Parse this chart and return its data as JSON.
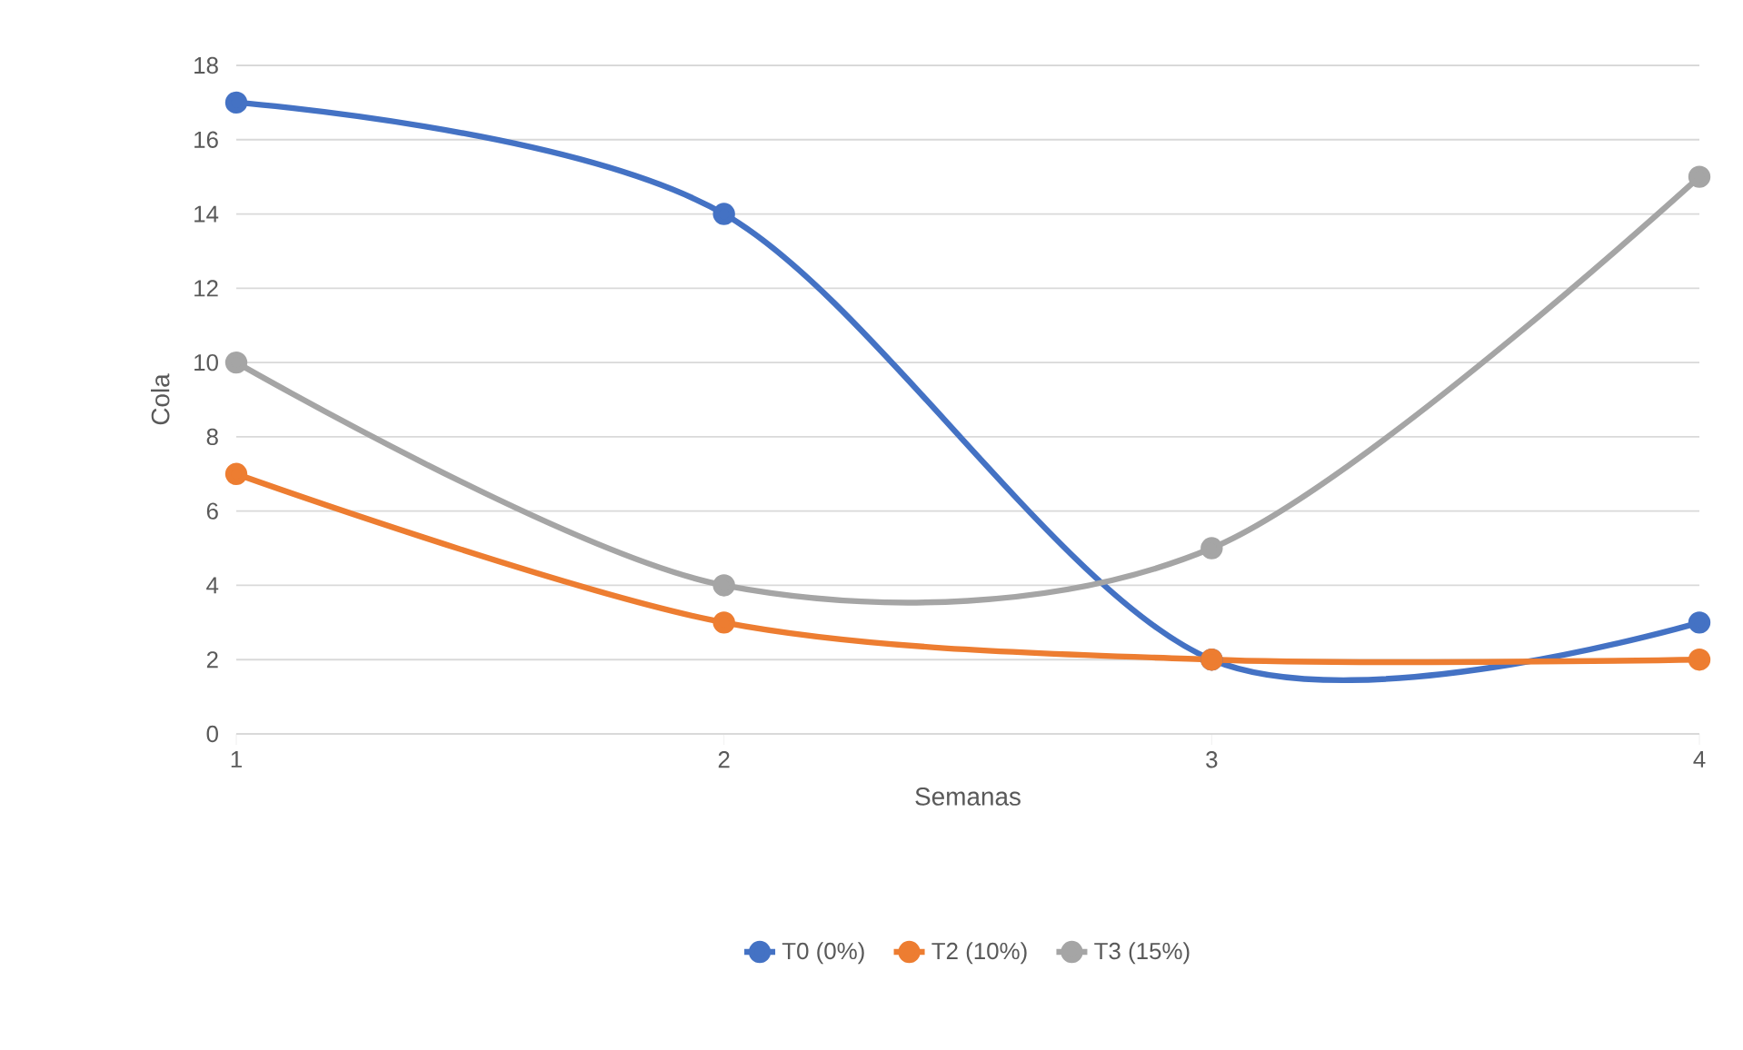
{
  "chart_data": {
    "type": "line",
    "xlabel": "Semanas",
    "ylabel": "Cola",
    "x": [
      1,
      2,
      3,
      4
    ],
    "series": [
      {
        "name": "T0 (0%)",
        "color": "#4472c4",
        "values": [
          17,
          14,
          2,
          3
        ]
      },
      {
        "name": "T2 (10%)",
        "color": "#ed7d31",
        "values": [
          7,
          3,
          2,
          2
        ]
      },
      {
        "name": "T3 (15%)",
        "color": "#a5a5a5",
        "values": [
          10,
          4,
          5,
          15
        ]
      }
    ],
    "xlim": [
      1,
      4
    ],
    "xticks": [
      1,
      2,
      3,
      4
    ],
    "ylim": [
      0,
      18
    ],
    "yticks": [
      0,
      2,
      4,
      6,
      8,
      10,
      12,
      14,
      16,
      18
    ],
    "grid": "y",
    "legend": "bottom",
    "marker": "circle",
    "line_style": "solid"
  }
}
